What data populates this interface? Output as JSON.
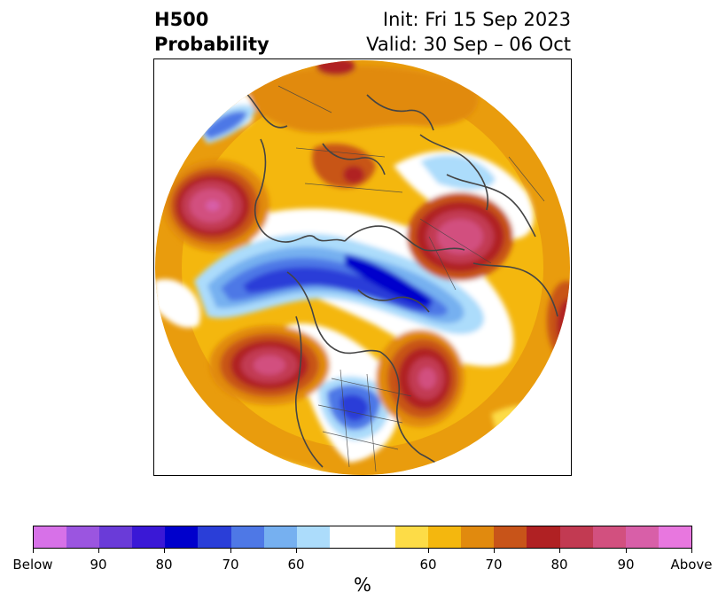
{
  "title": {
    "left_line1": "H500",
    "left_line2": "Probability",
    "right_line1": "Init: Fri 15 Sep 2023",
    "right_line2": "Valid: 30 Sep – 06 Oct"
  },
  "colorbar": {
    "unit": "%",
    "below_colors": [
      "#d771e8",
      "#9b55e0",
      "#6a3bd8",
      "#3a18d6",
      "#0000cc",
      "#2a3ed8",
      "#4e78e6",
      "#76b0f0",
      "#acdcfb"
    ],
    "neutral_color": "#ffffff",
    "above_colors": [
      "#fddc47",
      "#f4b70e",
      "#e18a0e",
      "#c85419",
      "#b02123",
      "#c23a52",
      "#d2507f",
      "#d85fa8",
      "#e877df"
    ],
    "tick_labels": [
      "Below",
      "90",
      "80",
      "70",
      "60",
      "60",
      "70",
      "80",
      "90",
      "Above"
    ]
  },
  "map": {
    "projection": "north-polar-stereographic",
    "land_outline_color": "#444444"
  }
}
